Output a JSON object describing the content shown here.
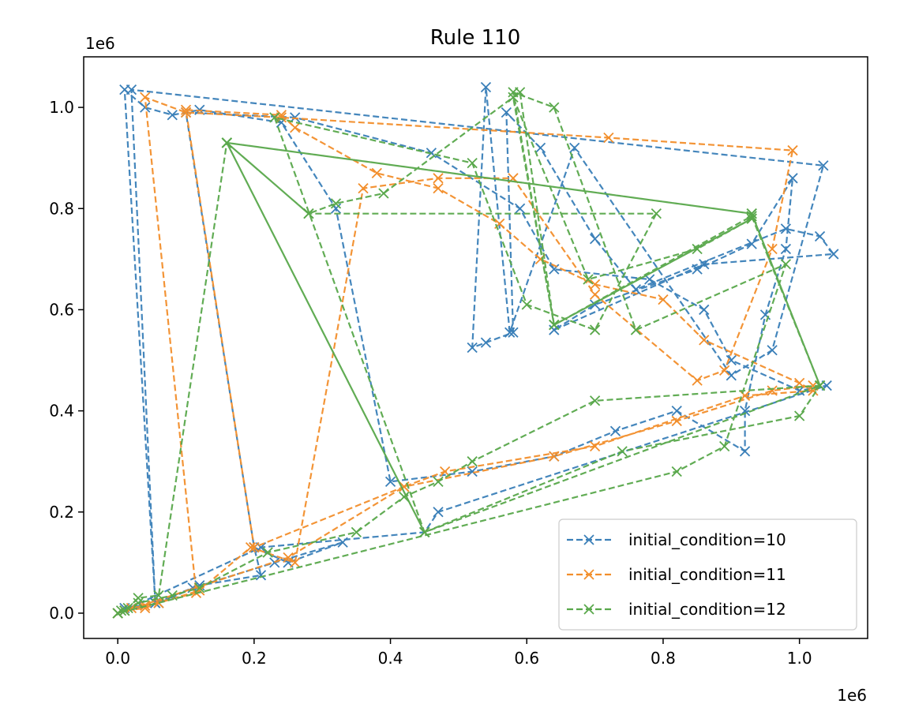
{
  "chart_data": {
    "type": "line",
    "title": "Rule 110",
    "xlabel": "",
    "ylabel": "",
    "x_offset_text": "1e6",
    "y_offset_text": "1e6",
    "xlim": [
      -50000,
      1100000
    ],
    "ylim": [
      -50000,
      1100000
    ],
    "xticks": [
      0,
      200000,
      400000,
      600000,
      800000,
      1000000
    ],
    "xtick_labels": [
      "0.0",
      "0.2",
      "0.4",
      "0.6",
      "0.8",
      "1.0"
    ],
    "yticks": [
      0,
      200000,
      400000,
      600000,
      800000,
      1000000
    ],
    "ytick_labels": [
      "0.0",
      "0.2",
      "0.4",
      "0.6",
      "0.8",
      "1.0"
    ],
    "grid": false,
    "legend_position": "lower right",
    "series": [
      {
        "name": "initial_condition=10",
        "color": "#3a7fb8",
        "marker": "x",
        "linestyle": "dashed",
        "points": [
          [
            0,
            0
          ],
          [
            10000,
            5000
          ],
          [
            55000,
            20000
          ],
          [
            20000,
            1035000
          ],
          [
            1035000,
            885000
          ],
          [
            960000,
            520000
          ],
          [
            900000,
            470000
          ],
          [
            670000,
            920000
          ],
          [
            575000,
            555000
          ],
          [
            540000,
            1040000
          ],
          [
            520000,
            525000
          ],
          [
            540000,
            535000
          ],
          [
            580000,
            555000
          ],
          [
            570000,
            990000
          ],
          [
            620000,
            920000
          ],
          [
            700000,
            740000
          ],
          [
            760000,
            640000
          ],
          [
            980000,
            760000
          ],
          [
            1030000,
            745000
          ],
          [
            1050000,
            710000
          ],
          [
            860000,
            690000
          ],
          [
            640000,
            560000
          ],
          [
            700000,
            610000
          ],
          [
            850000,
            680000
          ],
          [
            930000,
            730000
          ],
          [
            990000,
            860000
          ],
          [
            980000,
            720000
          ],
          [
            950000,
            590000
          ],
          [
            920000,
            400000
          ],
          [
            920000,
            320000
          ],
          [
            820000,
            400000
          ],
          [
            730000,
            360000
          ],
          [
            640000,
            310000
          ],
          [
            520000,
            280000
          ],
          [
            400000,
            260000
          ],
          [
            320000,
            800000
          ],
          [
            240000,
            970000
          ],
          [
            120000,
            995000
          ],
          [
            80000,
            985000
          ],
          [
            40000,
            1000000
          ],
          [
            10000,
            1035000
          ],
          [
            55000,
            20000
          ],
          [
            110000,
            50000
          ],
          [
            230000,
            100000
          ],
          [
            330000,
            140000
          ],
          [
            250000,
            100000
          ],
          [
            200000,
            130000
          ],
          [
            210000,
            75000
          ],
          [
            120000,
            55000
          ],
          [
            60000,
            20000
          ],
          [
            10000,
            10000
          ],
          [
            0,
            0
          ],
          [
            210000,
            130000
          ],
          [
            450000,
            160000
          ],
          [
            470000,
            200000
          ],
          [
            1040000,
            450000
          ],
          [
            1000000,
            440000
          ],
          [
            900000,
            500000
          ],
          [
            860000,
            600000
          ],
          [
            780000,
            660000
          ],
          [
            640000,
            680000
          ],
          [
            590000,
            800000
          ],
          [
            460000,
            910000
          ],
          [
            260000,
            980000
          ],
          [
            100000,
            990000
          ],
          [
            200000,
            130000
          ]
        ]
      },
      {
        "name": "initial_condition=11",
        "color": "#f28e2b",
        "marker": "x",
        "linestyle": "dashed",
        "points": [
          [
            0,
            0
          ],
          [
            20000,
            10000
          ],
          [
            40000,
            15000
          ],
          [
            115000,
            40000
          ],
          [
            40000,
            1020000
          ],
          [
            100000,
            990000
          ],
          [
            240000,
            980000
          ],
          [
            720000,
            940000
          ],
          [
            990000,
            915000
          ],
          [
            960000,
            720000
          ],
          [
            890000,
            480000
          ],
          [
            850000,
            460000
          ],
          [
            700000,
            630000
          ],
          [
            580000,
            860000
          ],
          [
            470000,
            860000
          ],
          [
            360000,
            840000
          ],
          [
            260000,
            100000
          ],
          [
            195000,
            130000
          ],
          [
            120000,
            45000
          ],
          [
            60000,
            20000
          ],
          [
            40000,
            10000
          ],
          [
            10000,
            5000
          ],
          [
            0,
            0
          ],
          [
            250000,
            110000
          ],
          [
            420000,
            250000
          ],
          [
            480000,
            280000
          ],
          [
            700000,
            330000
          ],
          [
            920000,
            430000
          ],
          [
            1020000,
            440000
          ],
          [
            1000000,
            455000
          ],
          [
            860000,
            540000
          ],
          [
            800000,
            620000
          ],
          [
            700000,
            650000
          ],
          [
            620000,
            700000
          ],
          [
            560000,
            770000
          ],
          [
            470000,
            840000
          ],
          [
            380000,
            870000
          ],
          [
            260000,
            960000
          ],
          [
            240000,
            985000
          ],
          [
            100000,
            995000
          ],
          [
            200000,
            130000
          ],
          [
            420000,
            250000
          ],
          [
            640000,
            310000
          ],
          [
            820000,
            380000
          ],
          [
            960000,
            440000
          ],
          [
            1020000,
            450000
          ]
        ]
      },
      {
        "name": "initial_condition=12",
        "color": "#59a84b",
        "marker": "x",
        "linestyle": "dashed",
        "points": [
          [
            0,
            0
          ],
          [
            5000,
            5000
          ],
          [
            15000,
            10000
          ],
          [
            30000,
            30000
          ],
          [
            60000,
            35000
          ],
          [
            160000,
            930000
          ],
          [
            930000,
            790000
          ],
          [
            1030000,
            450000
          ],
          [
            450000,
            160000
          ],
          [
            160000,
            930000
          ],
          [
            280000,
            790000
          ],
          [
            320000,
            810000
          ],
          [
            390000,
            830000
          ],
          [
            590000,
            1030000
          ],
          [
            640000,
            570000
          ],
          [
            930000,
            780000
          ],
          [
            850000,
            720000
          ],
          [
            690000,
            660000
          ],
          [
            580000,
            1020000
          ],
          [
            640000,
            570000
          ],
          [
            930000,
            785000
          ],
          [
            1030000,
            450000
          ],
          [
            1000000,
            390000
          ],
          [
            740000,
            320000
          ],
          [
            450000,
            160000
          ],
          [
            160000,
            930000
          ],
          [
            280000,
            790000
          ],
          [
            790000,
            790000
          ],
          [
            700000,
            560000
          ],
          [
            600000,
            610000
          ],
          [
            520000,
            890000
          ],
          [
            230000,
            980000
          ],
          [
            450000,
            160000
          ],
          [
            160000,
            930000
          ],
          [
            930000,
            790000
          ],
          [
            1030000,
            450000
          ],
          [
            700000,
            420000
          ],
          [
            520000,
            300000
          ],
          [
            470000,
            260000
          ],
          [
            420000,
            230000
          ],
          [
            350000,
            160000
          ],
          [
            220000,
            120000
          ],
          [
            120000,
            50000
          ],
          [
            80000,
            35000
          ],
          [
            30000,
            20000
          ],
          [
            10000,
            5000
          ],
          [
            0,
            0
          ],
          [
            820000,
            280000
          ],
          [
            890000,
            330000
          ],
          [
            980000,
            690000
          ],
          [
            760000,
            560000
          ],
          [
            640000,
            1000000
          ],
          [
            580000,
            1030000
          ],
          [
            640000,
            570000
          ],
          [
            930000,
            780000
          ]
        ]
      }
    ]
  }
}
